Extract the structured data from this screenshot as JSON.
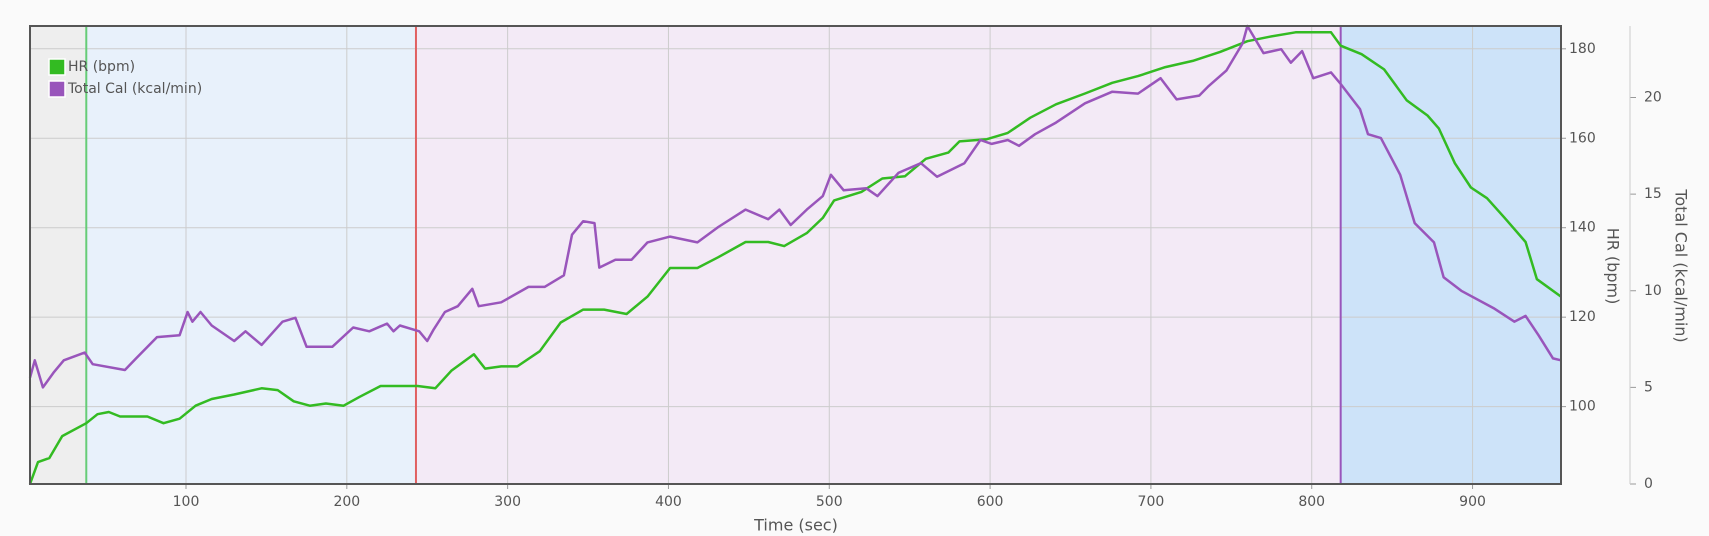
{
  "chart_data": {
    "type": "line",
    "xlabel": "Time (sec)",
    "ylabel": "HR (bpm)",
    "y2label": "Total Cal (kcal/min)",
    "xlim": [
      3,
      955
    ],
    "xticks": [
      100,
      200,
      300,
      400,
      500,
      600,
      700,
      800,
      900
    ],
    "ylim": [
      82.7,
      185.1
    ],
    "yticks": [
      100,
      120,
      140,
      160,
      180
    ],
    "y2lim": [
      0,
      23.7
    ],
    "y2ticks": [
      0,
      5,
      10,
      15,
      20
    ],
    "grid": true,
    "legend": "top-left",
    "zones": [
      {
        "start": 3,
        "end": 38,
        "color": "#eeeeee",
        "line_color": "#e06060"
      },
      {
        "start": 38,
        "end": 243,
        "color": "#e8f1fb",
        "line_color": "#66cc77"
      },
      {
        "start": 243,
        "end": 818,
        "color": "#f3eaf6",
        "line_color": "#e06060"
      },
      {
        "start": 818,
        "end": 955,
        "color": "#cde3f9",
        "line_color": "#9955bb"
      }
    ],
    "series": [
      {
        "name": "HR (bpm)",
        "color": "#33bb22",
        "axis": "y",
        "x": [
          3,
          8,
          15,
          23,
          38,
          45,
          52,
          59,
          76,
          86,
          96,
          106,
          116,
          130,
          147,
          157,
          167,
          177,
          187,
          198,
          208,
          221,
          244,
          255,
          265,
          279,
          286,
          296,
          306,
          320,
          333,
          347,
          360,
          374,
          387,
          401,
          418,
          431,
          448,
          462,
          472,
          486,
          496,
          503,
          520,
          533,
          547,
          560,
          574,
          581,
          598,
          611,
          625,
          641,
          659,
          676,
          692,
          709,
          726,
          743,
          760,
          774,
          790,
          812,
          818,
          831,
          845,
          859,
          872,
          879,
          889,
          899,
          909,
          920,
          933,
          940,
          955
        ],
        "values": [
          82.7,
          87.6,
          88.5,
          93.4,
          96.3,
          98.3,
          98.8,
          97.8,
          97.8,
          96.3,
          97.3,
          100.2,
          101.7,
          102.7,
          104.1,
          103.7,
          101.2,
          100.2,
          100.7,
          100.2,
          102.2,
          104.6,
          104.6,
          104.1,
          108.0,
          111.7,
          108.5,
          109.0,
          109.0,
          112.4,
          118.8,
          121.7,
          121.7,
          120.7,
          124.6,
          131.0,
          131.0,
          133.4,
          136.8,
          136.8,
          135.9,
          138.8,
          142.2,
          146.1,
          148.0,
          151.0,
          151.5,
          155.4,
          156.8,
          159.3,
          159.8,
          161.2,
          164.6,
          167.6,
          170.0,
          172.4,
          173.9,
          175.9,
          177.3,
          179.3,
          181.7,
          182.7,
          183.7,
          183.7,
          180.7,
          178.8,
          175.4,
          168.5,
          165.1,
          162.2,
          154.4,
          149.0,
          146.6,
          142.2,
          136.8,
          128.5,
          124.6
        ]
      },
      {
        "name": "Total Cal (kcal/min)",
        "color": "#9955bb",
        "axis": "y2",
        "x": [
          3,
          6,
          11,
          18,
          24,
          37,
          42,
          62,
          69,
          82,
          96,
          101,
          104,
          109,
          116,
          130,
          137,
          147,
          160,
          168,
          175,
          191,
          204,
          214,
          225,
          229,
          233,
          245,
          250,
          254,
          261,
          269,
          278,
          282,
          296,
          313,
          323,
          335,
          340,
          347,
          354,
          357,
          367,
          377,
          387,
          401,
          418,
          431,
          448,
          462,
          469,
          476,
          486,
          496,
          501,
          509,
          523,
          530,
          543,
          557,
          567,
          584,
          594,
          601,
          611,
          618,
          628,
          641,
          659,
          676,
          692,
          706,
          716,
          730,
          736,
          747,
          757,
          760,
          770,
          781,
          787,
          794,
          801,
          812,
          818,
          830,
          835,
          843,
          855,
          864,
          876,
          882,
          893,
          913,
          926,
          933,
          941,
          950,
          955
        ],
        "values": [
          5.5,
          6.4,
          5.0,
          5.8,
          6.4,
          6.8,
          6.2,
          5.9,
          6.5,
          7.6,
          7.7,
          8.9,
          8.4,
          8.9,
          8.2,
          7.4,
          7.9,
          7.2,
          8.4,
          8.6,
          7.1,
          7.1,
          8.1,
          7.9,
          8.3,
          7.9,
          8.2,
          7.9,
          7.4,
          8.0,
          8.9,
          9.2,
          10.1,
          9.2,
          9.4,
          10.2,
          10.2,
          10.8,
          12.9,
          13.6,
          13.5,
          11.2,
          11.6,
          11.6,
          12.5,
          12.8,
          12.5,
          13.3,
          14.2,
          13.7,
          14.2,
          13.4,
          14.2,
          14.9,
          16.0,
          15.2,
          15.3,
          14.9,
          16.1,
          16.6,
          15.9,
          16.6,
          17.8,
          17.6,
          17.8,
          17.5,
          18.1,
          18.7,
          19.7,
          20.3,
          20.2,
          21.0,
          19.9,
          20.1,
          20.6,
          21.4,
          22.8,
          23.7,
          22.3,
          22.5,
          21.8,
          22.4,
          21.0,
          21.3,
          20.7,
          19.4,
          18.1,
          17.9,
          16.0,
          13.5,
          12.5,
          10.7,
          10.0,
          9.1,
          8.4,
          8.7,
          7.7,
          6.5,
          6.4
        ]
      }
    ]
  }
}
